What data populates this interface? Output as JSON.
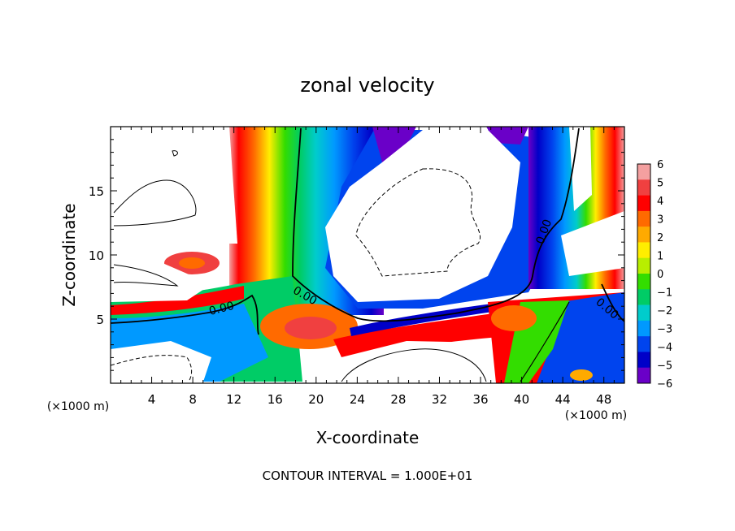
{
  "chart_data": {
    "type": "heatmap",
    "title": "zonal velocity",
    "xlabel": "X-coordinate",
    "ylabel": "Z-coordinate",
    "x_unit_label": "(×1000 m)",
    "y_unit_label": "(×1000 m)",
    "xlim": [
      0,
      50
    ],
    "ylim": [
      0,
      20
    ],
    "x_ticks": [
      4,
      8,
      12,
      16,
      20,
      24,
      28,
      32,
      36,
      40,
      44,
      48
    ],
    "y_ticks": [
      5,
      10,
      15
    ],
    "colorbar": {
      "range": [
        -6,
        6
      ],
      "ticks": [
        6,
        5,
        4,
        3,
        2,
        1,
        0,
        -1,
        -2,
        -3,
        -4,
        -5,
        -6
      ],
      "colors": [
        "#f4a0a0",
        "#f04040",
        "#ff0000",
        "#ff6a00",
        "#ffaa00",
        "#ffee00",
        "#b8ee00",
        "#33dd00",
        "#00cc66",
        "#00cccc",
        "#0099ff",
        "#0044ee",
        "#0000c8",
        "#6a00c8"
      ]
    },
    "contour_labels": [
      {
        "text": "0.00",
        "x": 10.8,
        "y": 5.8,
        "angle": -14
      },
      {
        "text": "0.00",
        "x": 18.9,
        "y": 6.8,
        "angle": 30
      },
      {
        "text": "0.00",
        "x": 42.2,
        "y": 11.8,
        "angle": -70
      },
      {
        "text": "0.00",
        "x": 48.3,
        "y": 5.8,
        "angle": 40
      }
    ],
    "contour_interval_text": "CONTOUR INTERVAL = 1.000E+01"
  }
}
